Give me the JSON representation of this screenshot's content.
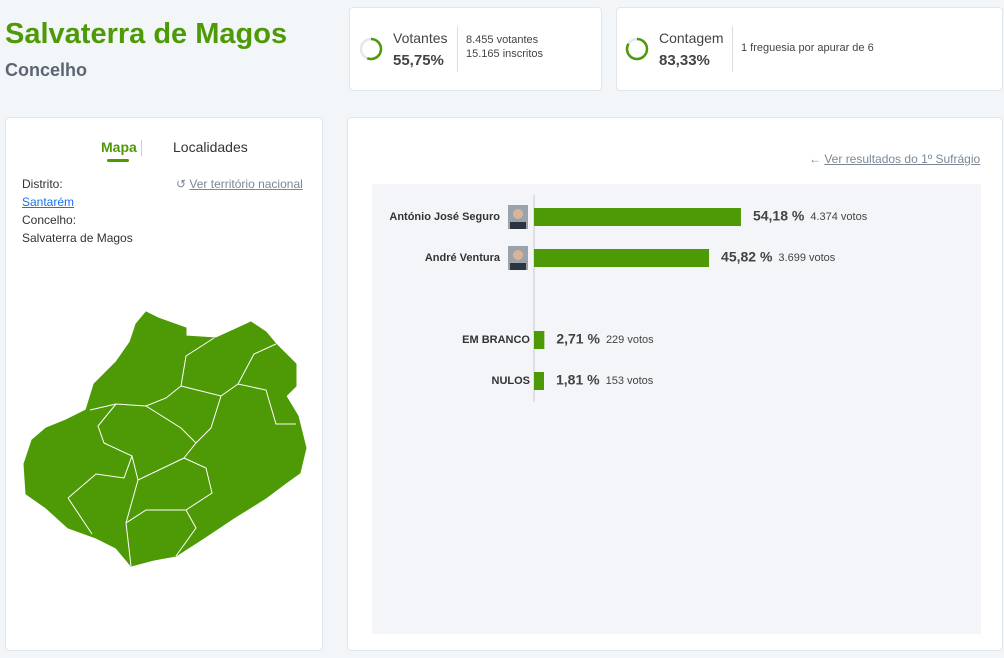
{
  "header": {
    "title": "Salvaterra de Magos",
    "subtitle": "Concelho"
  },
  "votantes": {
    "label": "Votantes",
    "percent": 55.75,
    "percent_label": "55,75%",
    "votantes": "8.455 votantes",
    "inscritos": "15.165 inscritos"
  },
  "contagem": {
    "label": "Contagem",
    "percent": 83.33,
    "percent_label": "83,33%",
    "detail": "1 freguesia por apurar de 6"
  },
  "sidebar": {
    "tabs": [
      "Mapa",
      "Localidades"
    ],
    "national_link": "Ver território nacional",
    "distrito_label": "Distrito:",
    "distrito": "Santarém",
    "concelho_label": "Concelho:",
    "concelho": "Salvaterra de Magos"
  },
  "results": {
    "link": "Ver resultados do 1º Sufrágio",
    "type": "bar",
    "color": "#4e9a06",
    "categories": [
      "António José Seguro",
      "André Ventura",
      "EM BRANCO",
      "NULOS"
    ],
    "values": [
      54.18,
      45.82,
      2.71,
      1.81
    ],
    "value_labels": [
      "54,18 %",
      "45,82 %",
      "2,71 %",
      "1,81 %"
    ],
    "votes": [
      "4.374 votos",
      "3.699 votos",
      "229 votos",
      "153 votos"
    ]
  }
}
